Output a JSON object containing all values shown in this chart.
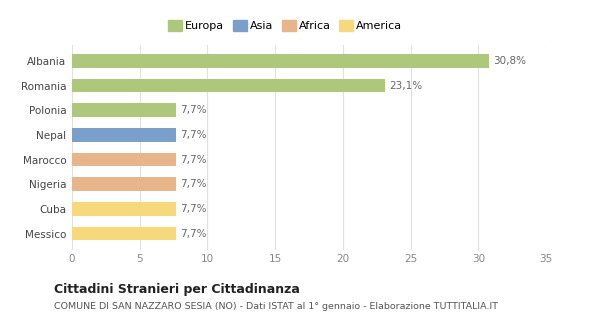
{
  "categories": [
    "Messico",
    "Cuba",
    "Nigeria",
    "Marocco",
    "Nepal",
    "Polonia",
    "Romania",
    "Albania"
  ],
  "values": [
    7.7,
    7.7,
    7.7,
    7.7,
    7.7,
    7.7,
    23.1,
    30.8
  ],
  "labels": [
    "7,7%",
    "7,7%",
    "7,7%",
    "7,7%",
    "7,7%",
    "7,7%",
    "23,1%",
    "30,8%"
  ],
  "colors": [
    "#f5d97a",
    "#f5d97a",
    "#e8b48a",
    "#e8b48a",
    "#7a9fcb",
    "#adc87a",
    "#adc87a",
    "#adc87a"
  ],
  "legend": [
    {
      "label": "Europa",
      "color": "#adc87a"
    },
    {
      "label": "Asia",
      "color": "#7a9fcb"
    },
    {
      "label": "Africa",
      "color": "#e8b48a"
    },
    {
      "label": "America",
      "color": "#f5d97a"
    }
  ],
  "xlim": [
    0,
    35
  ],
  "xticks": [
    0,
    5,
    10,
    15,
    20,
    25,
    30,
    35
  ],
  "title": "Cittadini Stranieri per Cittadinanza",
  "subtitle": "COMUNE DI SAN NAZZARO SESIA (NO) - Dati ISTAT al 1° gennaio - Elaborazione TUTTITALIA.IT",
  "bg_color": "#ffffff",
  "plot_bg": "#ffffff",
  "grid_color": "#e0e0e0",
  "label_color": "#666666",
  "tick_color": "#888888",
  "label_fontsize": 7.5,
  "tick_fontsize": 7.5,
  "bar_height": 0.55
}
